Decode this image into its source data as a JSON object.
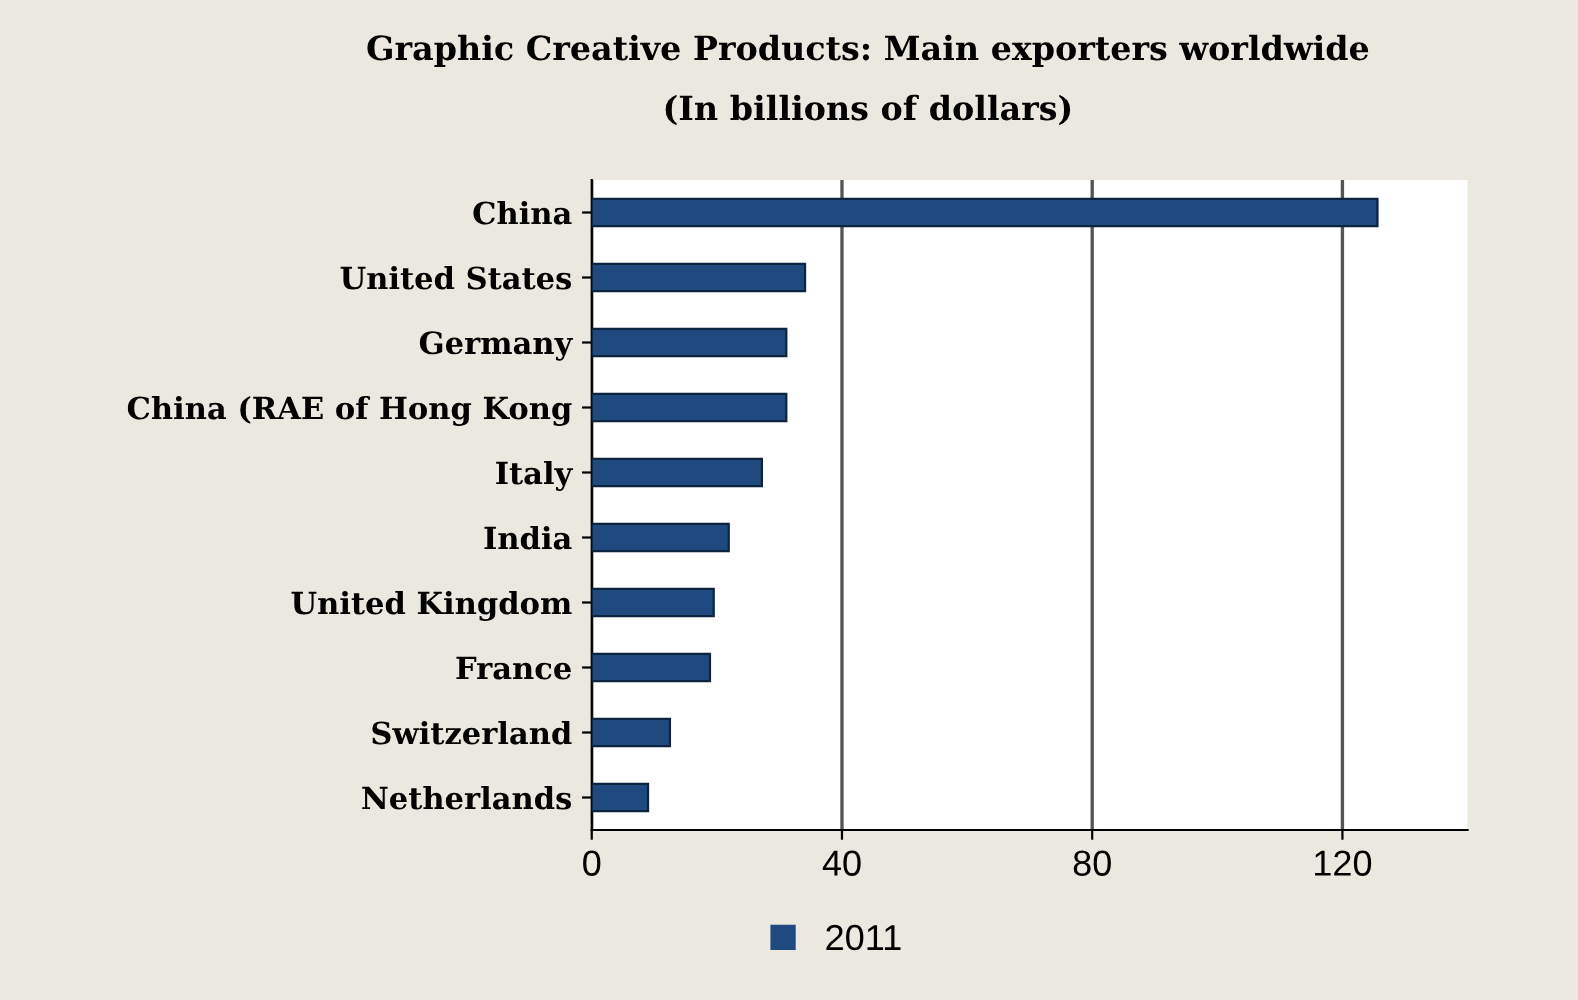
{
  "chart_data": {
    "type": "bar",
    "orientation": "horizontal",
    "title": "Graphic Creative Products: Main exporters worldwide",
    "subtitle": "(In billions of dollars)",
    "categories": [
      "China",
      "United States",
      "Germany",
      "China (RAE of Hong Kong",
      "Italy",
      "India",
      "United Kingdom",
      "France",
      "Switzerland",
      "Netherlands"
    ],
    "series": [
      {
        "name": "2011",
        "color": "#1f4a80",
        "values": [
          125.6,
          34.1,
          31.1,
          31.1,
          27.2,
          21.9,
          19.5,
          18.9,
          12.5,
          9.0
        ]
      }
    ],
    "xlim": [
      0,
      140
    ],
    "xticks": [
      0,
      40,
      80,
      120
    ],
    "grid": "x",
    "legend": "bottom"
  }
}
